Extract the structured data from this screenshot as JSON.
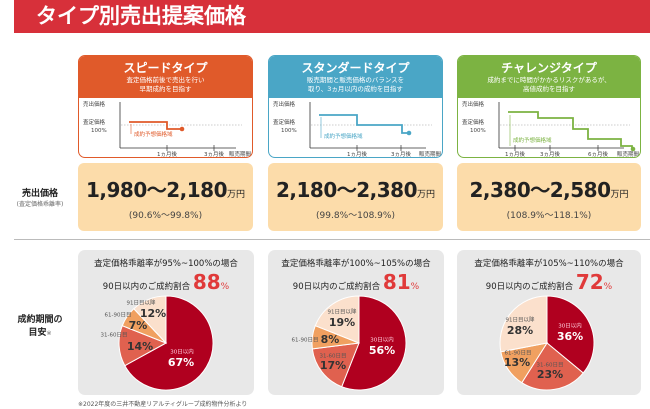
{
  "title": "タイプ別売出提案価格",
  "colors": {
    "speed": "#e05a2a",
    "standard": "#4aa6c6",
    "challenge": "#7cb342",
    "banner": "#d7303a",
    "pie": [
      "#b0001f",
      "#e0614f",
      "#f0a060",
      "#fbe0cc"
    ]
  },
  "chart_axis": {
    "y_top": "売出価格",
    "y_mid": "査定価格",
    "y_mid2": "100%",
    "x_end": "販売期間",
    "range": "成約予想価格域"
  },
  "types": [
    {
      "name": "スピードタイプ",
      "desc1": "査定価格前後で売出を行い",
      "desc2": "早期成約を目指す",
      "ticks": [
        "1ヵ月後",
        "3ヵ月後"
      ],
      "price": "1,980〜2,180",
      "unit": "万円",
      "ratio": "(90.6%〜99.8%)"
    },
    {
      "name": "スタンダードタイプ",
      "desc1": "販売期間と販売価格のバランスを",
      "desc2": "取り、3ヵ月以内の成約を目指す",
      "ticks": [
        "1ヵ月後",
        "3ヵ月後"
      ],
      "price": "2,180〜2,380",
      "unit": "万円",
      "ratio": "(99.8%〜108.9%)"
    },
    {
      "name": "チャレンジタイプ",
      "desc1": "成約までに時間がかかるリスクがあるが、",
      "desc2": "高値成約を目指す",
      "ticks": [
        "1ヵ月後",
        "3ヵ月後",
        "6ヵ月後"
      ],
      "price": "2,380〜2,580",
      "unit": "万円",
      "ratio": "(108.9%〜118.1%)"
    }
  ],
  "price_label": "売出価格",
  "price_sublabel": "(査定価格乖離率)",
  "period_label1": "成約期間の",
  "period_label2": "目安",
  "period_mark": "※",
  "pies": [
    {
      "cond": "査定価格乖離率が95%~100%の場合",
      "rate_label": "90日以内のご成約割合",
      "rate": "88",
      "pct": "%",
      "slices": [
        {
          "label": "30日以内",
          "value": 67
        },
        {
          "label": "31-60日目",
          "value": 14
        },
        {
          "label": "61-90日目",
          "value": 7
        },
        {
          "label": "91日目以降",
          "value": 12
        }
      ]
    },
    {
      "cond": "査定価格乖離率が100%~105%の場合",
      "rate_label": "90日以内のご成約割合",
      "rate": "81",
      "pct": "%",
      "slices": [
        {
          "label": "30日以内",
          "value": 56
        },
        {
          "label": "31-60日目",
          "value": 17
        },
        {
          "label": "61-90日目",
          "value": 8
        },
        {
          "label": "91日目以降",
          "value": 19
        }
      ]
    },
    {
      "cond": "査定価格乖離率が105%~110%の場合",
      "rate_label": "90日以内のご成約割合",
      "rate": "72",
      "pct": "%",
      "slices": [
        {
          "label": "30日以内",
          "value": 36
        },
        {
          "label": "31-60日目",
          "value": 23
        },
        {
          "label": "61-90日目",
          "value": 13
        },
        {
          "label": "91日目以降",
          "value": 28
        }
      ]
    }
  ],
  "footnote": "※2022年度の三井不動産リアルティグループ成約物件分析より"
}
